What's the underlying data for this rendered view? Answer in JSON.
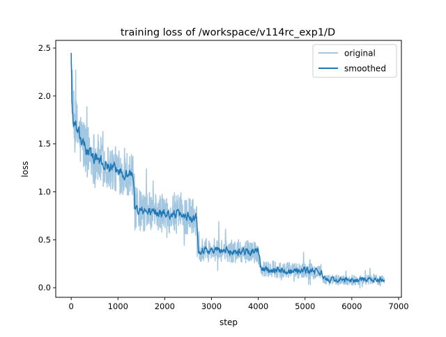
{
  "chart_data": {
    "type": "line",
    "title": "training loss of /workspace/v114rc_exp1/D",
    "xlabel": "step",
    "ylabel": "loss",
    "xlim": [
      -330,
      7060
    ],
    "ylim": [
      -0.1,
      2.58
    ],
    "xticks": [
      0,
      1000,
      2000,
      3000,
      4000,
      5000,
      6000,
      7000
    ],
    "xtick_labels": [
      "0",
      "1000",
      "2000",
      "3000",
      "4000",
      "5000",
      "6000",
      "7000"
    ],
    "yticks": [
      0.0,
      0.5,
      1.0,
      1.5,
      2.0,
      2.5
    ],
    "ytick_labels": [
      "0.0",
      "0.5",
      "1.0",
      "1.5",
      "2.0",
      "2.5"
    ],
    "grid": false,
    "legend_position": "top-right",
    "series": [
      {
        "name": "original",
        "color": "#a3c7e1",
        "stroke_width": 1.5,
        "style": "noisy",
        "x": [
          0,
          20,
          50,
          100,
          200,
          300,
          400,
          500,
          600,
          700,
          800,
          900,
          1000,
          1100,
          1200,
          1300,
          1340,
          1360,
          1500,
          1700,
          1900,
          2100,
          2300,
          2500,
          2680,
          2700,
          2720,
          2800,
          3000,
          3200,
          3400,
          3600,
          3800,
          4000,
          4030,
          4050,
          4200,
          4400,
          4600,
          4800,
          5000,
          5200,
          5350,
          5360,
          5380,
          5500,
          5700,
          5900,
          6100,
          6300,
          6500,
          6700
        ],
        "y": [
          2.45,
          1.85,
          1.72,
          1.66,
          1.55,
          1.46,
          1.4,
          1.36,
          1.32,
          1.29,
          1.26,
          1.24,
          1.22,
          1.2,
          1.19,
          1.18,
          1.12,
          0.82,
          0.8,
          0.79,
          0.78,
          0.77,
          0.76,
          0.75,
          0.74,
          0.6,
          0.4,
          0.4,
          0.39,
          0.39,
          0.38,
          0.38,
          0.38,
          0.37,
          0.3,
          0.2,
          0.19,
          0.19,
          0.18,
          0.18,
          0.18,
          0.17,
          0.17,
          0.14,
          0.09,
          0.08,
          0.08,
          0.08,
          0.08,
          0.08,
          0.08,
          0.08
        ],
        "noise": [
          0.1,
          0.35,
          0.38,
          0.36,
          0.34,
          0.33,
          0.32,
          0.31,
          0.3,
          0.29,
          0.28,
          0.27,
          0.27,
          0.26,
          0.26,
          0.25,
          0.25,
          0.26,
          0.24,
          0.23,
          0.23,
          0.22,
          0.22,
          0.22,
          0.22,
          0.15,
          0.14,
          0.14,
          0.14,
          0.14,
          0.13,
          0.13,
          0.13,
          0.13,
          0.1,
          0.1,
          0.1,
          0.1,
          0.1,
          0.09,
          0.09,
          0.09,
          0.09,
          0.07,
          0.06,
          0.06,
          0.06,
          0.06,
          0.06,
          0.06,
          0.06,
          0.06
        ]
      },
      {
        "name": "smoothed",
        "color": "#1f77b4",
        "stroke_width": 1.5,
        "style": "smoothed",
        "x": [
          0,
          20,
          50,
          100,
          200,
          300,
          400,
          500,
          600,
          700,
          800,
          900,
          1000,
          1100,
          1200,
          1300,
          1340,
          1360,
          1500,
          1700,
          1900,
          2100,
          2300,
          2500,
          2680,
          2700,
          2720,
          2800,
          3000,
          3200,
          3400,
          3600,
          3800,
          4000,
          4030,
          4050,
          4200,
          4400,
          4600,
          4800,
          5000,
          5200,
          5350,
          5360,
          5380,
          5500,
          5700,
          5900,
          6100,
          6300,
          6500,
          6700
        ],
        "y": [
          2.45,
          1.85,
          1.72,
          1.66,
          1.55,
          1.46,
          1.4,
          1.36,
          1.32,
          1.29,
          1.26,
          1.24,
          1.22,
          1.2,
          1.19,
          1.18,
          1.12,
          0.82,
          0.8,
          0.79,
          0.78,
          0.77,
          0.76,
          0.75,
          0.74,
          0.6,
          0.4,
          0.4,
          0.39,
          0.39,
          0.38,
          0.38,
          0.38,
          0.37,
          0.3,
          0.2,
          0.19,
          0.19,
          0.18,
          0.18,
          0.18,
          0.17,
          0.17,
          0.14,
          0.09,
          0.08,
          0.08,
          0.08,
          0.08,
          0.08,
          0.08,
          0.08
        ],
        "noise": [
          0.0,
          0.06,
          0.06,
          0.05,
          0.05,
          0.05,
          0.05,
          0.045,
          0.045,
          0.045,
          0.04,
          0.04,
          0.04,
          0.04,
          0.04,
          0.04,
          0.04,
          0.04,
          0.035,
          0.035,
          0.035,
          0.035,
          0.035,
          0.035,
          0.035,
          0.03,
          0.03,
          0.03,
          0.03,
          0.03,
          0.03,
          0.03,
          0.03,
          0.03,
          0.025,
          0.025,
          0.025,
          0.025,
          0.025,
          0.025,
          0.025,
          0.025,
          0.025,
          0.02,
          0.02,
          0.02,
          0.02,
          0.02,
          0.02,
          0.02,
          0.02,
          0.02
        ]
      }
    ]
  }
}
